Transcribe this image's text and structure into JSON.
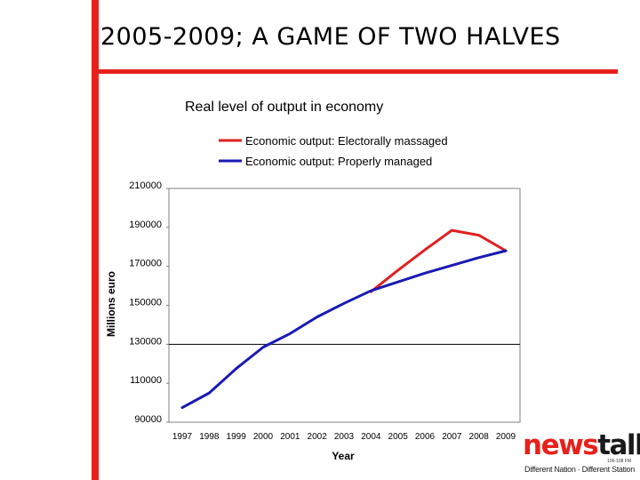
{
  "slide": {
    "title": "2005-2009; A GAME OF TWO HALVES",
    "accent_color": "#e8201a"
  },
  "logo": {
    "news": "news",
    "talk": "talk",
    "frequency": "106-108 FM",
    "slogan": "Different Nation · Different Station"
  },
  "chart_data": {
    "type": "line",
    "title": "Real level of output in economy",
    "xlabel": "Year",
    "ylabel": "Millions euro",
    "x": [
      "1997",
      "1998",
      "1999",
      "2000",
      "2001",
      "2002",
      "2003",
      "2004",
      "2005",
      "2006",
      "2007",
      "2008",
      "2009"
    ],
    "yticks": [
      "210000",
      "190000",
      "170000",
      "150000",
      "130000",
      "110000",
      "90000"
    ],
    "ylim": [
      90000,
      210000
    ],
    "grid": false,
    "reference_line": 130000,
    "legend_position": "top",
    "series": [
      {
        "name": "Economic output: Electorally massaged",
        "color": "#e02020",
        "values": [
          null,
          null,
          null,
          null,
          null,
          null,
          null,
          157000,
          168000,
          178500,
          188500,
          186000,
          178000
        ]
      },
      {
        "name": "Economic output: Properly managed",
        "color": "#1a1ab4",
        "values": [
          97500,
          105000,
          117500,
          128500,
          135500,
          144000,
          151000,
          157500,
          162000,
          166500,
          170500,
          174500,
          178000
        ]
      }
    ]
  }
}
